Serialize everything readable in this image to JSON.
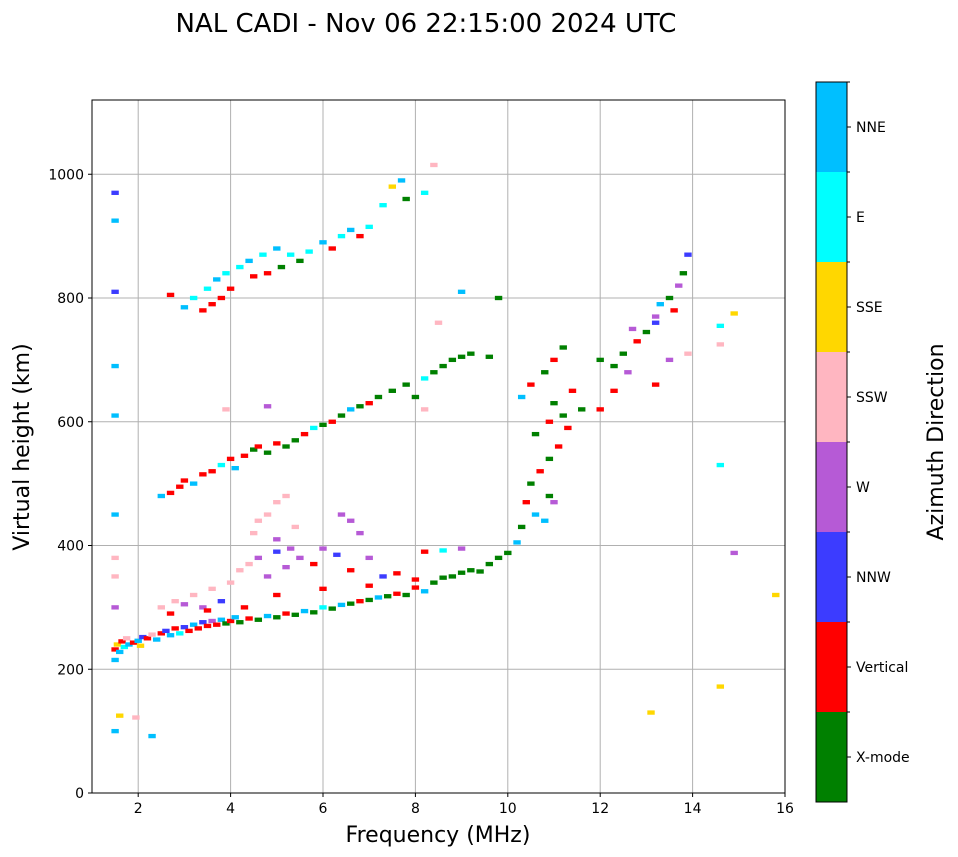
{
  "chart_data": {
    "type": "scatter",
    "title": "NAL CADI - Nov 06 22:15:00 2024 UTC",
    "xlabel": "Frequency (MHz)",
    "ylabel": "Virtual height (km)",
    "xlim": [
      1,
      16
    ],
    "ylim": [
      0,
      1120
    ],
    "xticks": [
      2,
      4,
      6,
      8,
      10,
      12,
      14,
      16
    ],
    "yticks": [
      0,
      200,
      400,
      600,
      800,
      1000
    ],
    "grid": true,
    "colorbar": {
      "label": "Azimuth Direction",
      "categories": [
        {
          "name": "X-mode",
          "color": "#008000"
        },
        {
          "name": "Vertical",
          "color": "#ff0000"
        },
        {
          "name": "NNW",
          "color": "#3c3cff"
        },
        {
          "name": "W",
          "color": "#b65ad6"
        },
        {
          "name": "SSW",
          "color": "#ffb6c1"
        },
        {
          "name": "SSE",
          "color": "#ffd700"
        },
        {
          "name": "E",
          "color": "#00ffff"
        },
        {
          "name": "NNE",
          "color": "#00bfff"
        }
      ]
    },
    "point_format": [
      "frequency_mhz",
      "virtual_height_km",
      "category_index"
    ],
    "points": [
      [
        1.5,
        232,
        1
      ],
      [
        1.55,
        240,
        5
      ],
      [
        1.6,
        228,
        7
      ],
      [
        1.65,
        245,
        1
      ],
      [
        1.7,
        236,
        6
      ],
      [
        1.75,
        250,
        4
      ],
      [
        1.8,
        240,
        7
      ],
      [
        1.9,
        243,
        1
      ],
      [
        2.0,
        246,
        7
      ],
      [
        2.05,
        238,
        5
      ],
      [
        2.1,
        252,
        2
      ],
      [
        2.2,
        250,
        1
      ],
      [
        2.3,
        256,
        4
      ],
      [
        2.4,
        248,
        7
      ],
      [
        2.5,
        258,
        1
      ],
      [
        2.6,
        262,
        2
      ],
      [
        2.7,
        255,
        7
      ],
      [
        2.8,
        266,
        1
      ],
      [
        2.9,
        258,
        6
      ],
      [
        3.0,
        268,
        2
      ],
      [
        3.1,
        262,
        1
      ],
      [
        3.2,
        272,
        7
      ],
      [
        3.3,
        266,
        1
      ],
      [
        3.4,
        276,
        2
      ],
      [
        3.5,
        270,
        1
      ],
      [
        3.6,
        278,
        3
      ],
      [
        3.7,
        272,
        1
      ],
      [
        3.8,
        280,
        7
      ],
      [
        3.9,
        274,
        0
      ],
      [
        4.0,
        278,
        1
      ],
      [
        4.1,
        284,
        7
      ],
      [
        4.2,
        276,
        0
      ],
      [
        4.4,
        282,
        1
      ],
      [
        4.6,
        280,
        0
      ],
      [
        4.8,
        286,
        7
      ],
      [
        5.0,
        284,
        0
      ],
      [
        5.2,
        290,
        1
      ],
      [
        5.4,
        288,
        0
      ],
      [
        5.6,
        294,
        7
      ],
      [
        5.8,
        292,
        0
      ],
      [
        6.0,
        300,
        6
      ],
      [
        6.2,
        298,
        0
      ],
      [
        6.4,
        304,
        7
      ],
      [
        6.6,
        306,
        0
      ],
      [
        6.8,
        310,
        1
      ],
      [
        7.0,
        312,
        0
      ],
      [
        7.2,
        316,
        7
      ],
      [
        7.4,
        318,
        0
      ],
      [
        7.6,
        322,
        1
      ],
      [
        7.8,
        320,
        0
      ],
      [
        8.0,
        332,
        1
      ],
      [
        8.2,
        326,
        7
      ],
      [
        8.4,
        340,
        0
      ],
      [
        8.6,
        348,
        0
      ],
      [
        8.8,
        350,
        0
      ],
      [
        9.0,
        356,
        0
      ],
      [
        9.2,
        360,
        0
      ],
      [
        9.4,
        358,
        0
      ],
      [
        9.6,
        370,
        0
      ],
      [
        9.8,
        380,
        0
      ],
      [
        10.0,
        388,
        0
      ],
      [
        2.5,
        300,
        4
      ],
      [
        2.8,
        310,
        4
      ],
      [
        3.0,
        305,
        3
      ],
      [
        3.2,
        320,
        4
      ],
      [
        3.4,
        300,
        3
      ],
      [
        3.6,
        330,
        4
      ],
      [
        3.8,
        310,
        2
      ],
      [
        4.0,
        340,
        4
      ],
      [
        4.2,
        360,
        4
      ],
      [
        4.4,
        370,
        4
      ],
      [
        4.6,
        380,
        3
      ],
      [
        4.8,
        350,
        3
      ],
      [
        5.0,
        390,
        2
      ],
      [
        5.2,
        365,
        3
      ],
      [
        5.5,
        380,
        3
      ],
      [
        5.8,
        370,
        1
      ],
      [
        6.0,
        395,
        3
      ],
      [
        6.3,
        385,
        2
      ],
      [
        6.6,
        360,
        1
      ],
      [
        7.0,
        380,
        3
      ],
      [
        7.3,
        350,
        2
      ],
      [
        7.6,
        355,
        1
      ],
      [
        8.0,
        345,
        1
      ],
      [
        8.2,
        390,
        1
      ],
      [
        8.6,
        392,
        6
      ],
      [
        9.0,
        395,
        3
      ],
      [
        2.7,
        290,
        1
      ],
      [
        3.5,
        295,
        1
      ],
      [
        4.3,
        300,
        1
      ],
      [
        5.0,
        320,
        1
      ],
      [
        6.0,
        330,
        1
      ],
      [
        7.0,
        335,
        1
      ],
      [
        4.5,
        420,
        4
      ],
      [
        4.8,
        450,
        4
      ],
      [
        5.0,
        470,
        4
      ],
      [
        5.2,
        480,
        4
      ],
      [
        5.4,
        430,
        4
      ],
      [
        5.0,
        410,
        3
      ],
      [
        4.6,
        440,
        4
      ],
      [
        5.3,
        395,
        3
      ],
      [
        6.4,
        450,
        3
      ],
      [
        6.6,
        440,
        3
      ],
      [
        6.8,
        420,
        3
      ],
      [
        10.2,
        405,
        7
      ],
      [
        10.3,
        430,
        0
      ],
      [
        10.4,
        470,
        1
      ],
      [
        10.6,
        450,
        7
      ],
      [
        10.8,
        440,
        7
      ],
      [
        10.9,
        480,
        0
      ],
      [
        11.0,
        470,
        3
      ],
      [
        10.5,
        500,
        0
      ],
      [
        10.7,
        520,
        1
      ],
      [
        10.9,
        540,
        0
      ],
      [
        11.1,
        560,
        1
      ],
      [
        10.6,
        580,
        0
      ],
      [
        10.9,
        600,
        1
      ],
      [
        11.2,
        610,
        0
      ],
      [
        11.3,
        590,
        1
      ],
      [
        11.0,
        630,
        0
      ],
      [
        11.4,
        650,
        1
      ],
      [
        11.6,
        620,
        0
      ],
      [
        10.3,
        640,
        7
      ],
      [
        10.5,
        660,
        1
      ],
      [
        10.8,
        680,
        0
      ],
      [
        11.0,
        700,
        1
      ],
      [
        11.2,
        720,
        0
      ],
      [
        12.0,
        700,
        0
      ],
      [
        12.3,
        690,
        0
      ],
      [
        12.5,
        710,
        0
      ],
      [
        12.6,
        680,
        3
      ],
      [
        12.3,
        650,
        1
      ],
      [
        12.0,
        620,
        1
      ],
      [
        12.8,
        730,
        1
      ],
      [
        13.0,
        745,
        0
      ],
      [
        13.2,
        770,
        3
      ],
      [
        13.3,
        790,
        7
      ],
      [
        13.2,
        760,
        2
      ],
      [
        13.5,
        800,
        0
      ],
      [
        13.7,
        820,
        3
      ],
      [
        13.8,
        840,
        0
      ],
      [
        13.9,
        870,
        2
      ],
      [
        13.5,
        700,
        3
      ],
      [
        13.2,
        660,
        1
      ],
      [
        12.7,
        750,
        3
      ],
      [
        13.6,
        780,
        1
      ],
      [
        1.5,
        970,
        2
      ],
      [
        1.5,
        925,
        7
      ],
      [
        1.5,
        810,
        2
      ],
      [
        1.5,
        690,
        7
      ],
      [
        1.5,
        610,
        7
      ],
      [
        1.5,
        450,
        7
      ],
      [
        1.5,
        380,
        4
      ],
      [
        1.5,
        350,
        4
      ],
      [
        1.5,
        300,
        3
      ],
      [
        1.5,
        215,
        7
      ],
      [
        1.5,
        100,
        7
      ],
      [
        1.6,
        125,
        5
      ],
      [
        1.95,
        122,
        4
      ],
      [
        2.3,
        92,
        7
      ],
      [
        2.5,
        480,
        7
      ],
      [
        2.7,
        485,
        1
      ],
      [
        2.9,
        495,
        1
      ],
      [
        3.0,
        505,
        1
      ],
      [
        3.2,
        500,
        7
      ],
      [
        3.4,
        515,
        1
      ],
      [
        3.6,
        520,
        1
      ],
      [
        3.8,
        530,
        6
      ],
      [
        4.0,
        540,
        1
      ],
      [
        4.1,
        525,
        7
      ],
      [
        4.3,
        545,
        1
      ],
      [
        4.5,
        555,
        0
      ],
      [
        4.6,
        560,
        1
      ],
      [
        4.8,
        550,
        0
      ],
      [
        5.0,
        565,
        1
      ],
      [
        5.2,
        560,
        0
      ],
      [
        5.4,
        570,
        0
      ],
      [
        5.6,
        580,
        1
      ],
      [
        5.8,
        590,
        6
      ],
      [
        6.0,
        595,
        0
      ],
      [
        6.2,
        600,
        1
      ],
      [
        6.4,
        610,
        0
      ],
      [
        6.6,
        620,
        7
      ],
      [
        6.8,
        625,
        0
      ],
      [
        7.0,
        630,
        1
      ],
      [
        7.2,
        640,
        0
      ],
      [
        7.5,
        650,
        0
      ],
      [
        7.8,
        660,
        0
      ],
      [
        8.0,
        640,
        0
      ],
      [
        8.2,
        670,
        6
      ],
      [
        8.4,
        680,
        0
      ],
      [
        8.6,
        690,
        0
      ],
      [
        8.8,
        700,
        0
      ],
      [
        9.0,
        705,
        0
      ],
      [
        9.2,
        710,
        0
      ],
      [
        9.6,
        705,
        0
      ],
      [
        9.8,
        800,
        0
      ],
      [
        9.0,
        810,
        7
      ],
      [
        8.5,
        760,
        4
      ],
      [
        8.2,
        620,
        4
      ],
      [
        3.9,
        620,
        4
      ],
      [
        4.8,
        625,
        3
      ],
      [
        3.0,
        785,
        7
      ],
      [
        3.2,
        800,
        6
      ],
      [
        3.4,
        780,
        1
      ],
      [
        3.5,
        815,
        6
      ],
      [
        3.6,
        790,
        1
      ],
      [
        3.7,
        830,
        7
      ],
      [
        3.8,
        800,
        1
      ],
      [
        3.9,
        840,
        6
      ],
      [
        4.0,
        815,
        1
      ],
      [
        4.2,
        850,
        6
      ],
      [
        4.4,
        860,
        7
      ],
      [
        4.5,
        835,
        1
      ],
      [
        4.7,
        870,
        6
      ],
      [
        4.8,
        840,
        1
      ],
      [
        5.0,
        880,
        7
      ],
      [
        5.1,
        850,
        0
      ],
      [
        5.3,
        870,
        6
      ],
      [
        5.5,
        860,
        0
      ],
      [
        5.7,
        875,
        6
      ],
      [
        6.0,
        890,
        7
      ],
      [
        6.2,
        880,
        1
      ],
      [
        6.4,
        900,
        6
      ],
      [
        6.6,
        910,
        7
      ],
      [
        6.8,
        900,
        1
      ],
      [
        7.0,
        915,
        6
      ],
      [
        7.3,
        950,
        6
      ],
      [
        7.5,
        980,
        5
      ],
      [
        7.8,
        960,
        0
      ],
      [
        7.7,
        990,
        7
      ],
      [
        8.2,
        970,
        6
      ],
      [
        8.4,
        1015,
        4
      ],
      [
        2.7,
        805,
        1
      ],
      [
        14.6,
        755,
        6
      ],
      [
        14.6,
        725,
        4
      ],
      [
        14.6,
        530,
        6
      ],
      [
        14.9,
        775,
        5
      ],
      [
        14.9,
        388,
        3
      ],
      [
        15.8,
        320,
        5
      ],
      [
        14.6,
        172,
        5
      ],
      [
        13.1,
        130,
        5
      ],
      [
        13.9,
        710,
        4
      ]
    ]
  }
}
